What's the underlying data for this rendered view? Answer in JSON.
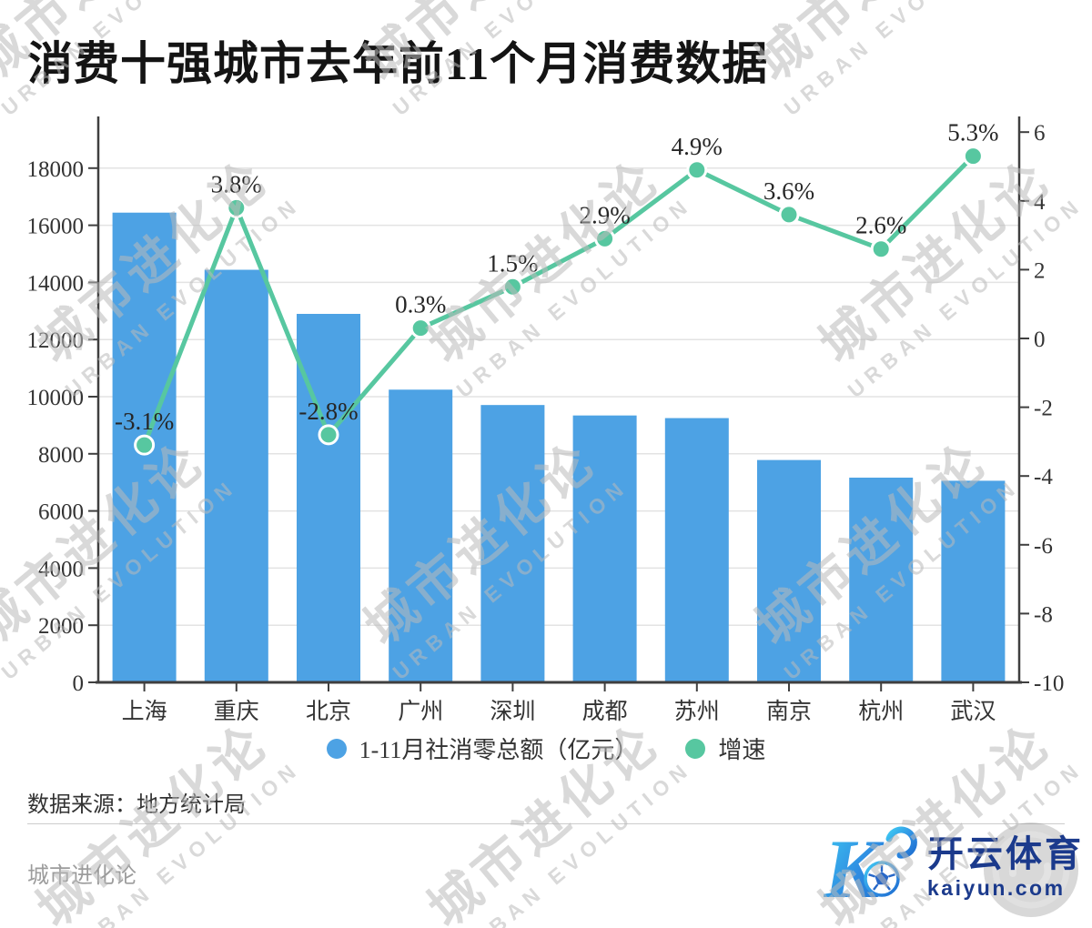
{
  "title": "消费十强城市去年前11个月消费数据",
  "watermark": {
    "cn": "城市进化论",
    "en": "URBAN EVOLUTION"
  },
  "chart_data": {
    "type": "bar+line",
    "title": "消费十强城市去年前11个月消费数据",
    "categories": [
      "上海",
      "重庆",
      "北京",
      "广州",
      "深圳",
      "成都",
      "苏州",
      "南京",
      "杭州",
      "武汉"
    ],
    "series": [
      {
        "name": "1-11月社消零总额（亿元）",
        "type": "bar",
        "axis": "left",
        "color": "#4DA2E4",
        "values": [
          16442,
          14442,
          12898,
          10246,
          9708,
          9342,
          9250,
          7783,
          7166,
          7057
        ]
      },
      {
        "name": "增速",
        "type": "line",
        "axis": "right",
        "color": "#57C7A0",
        "marker_stroke": "#ffffff",
        "values": [
          -3.1,
          3.8,
          -2.8,
          0.3,
          1.5,
          2.9,
          4.9,
          3.6,
          2.6,
          5.3
        ],
        "labels": [
          "-3.1%",
          "3.8%",
          "-2.8%",
          "0.3%",
          "1.5%",
          "2.9%",
          "4.9%",
          "3.6%",
          "2.6%",
          "5.3%"
        ]
      }
    ],
    "left_axis": {
      "min": 0,
      "max": 18000,
      "step": 2000
    },
    "right_axis": {
      "min": -10,
      "max": 6,
      "step": 2
    },
    "grid": true,
    "legend_position": "bottom",
    "colors": {
      "grid": "#e3e3e3",
      "axis": "#3f3f3f",
      "tick_text": "#333333",
      "data_label": "#262626"
    }
  },
  "source": {
    "text": "数据来源：地方统计局"
  },
  "footer": {
    "brand": "城市进化论",
    "logo_cn": "开云体育",
    "logo_domain": "kaiyun.com",
    "logo_navy": "#1b3a8c"
  }
}
